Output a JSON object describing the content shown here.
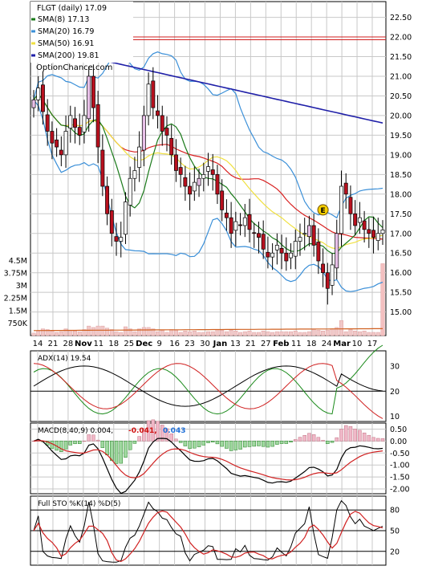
{
  "chart_data": [
    {
      "type": "candlestick",
      "panel": "price",
      "ticker": "FLGT",
      "period": "daily",
      "last_close": 17.09,
      "legend": {
        "title": "FLGT (daily) 17.09",
        "entries": [
          {
            "name": "SMA(8) 17.13",
            "color": "#1a7a1a"
          },
          {
            "name": "SMA(20) 16.79",
            "color": "#3a8fd8"
          },
          {
            "name": "SMA(50) 16.91",
            "color": "#f0e040"
          },
          {
            "name": "SMA(200) 19.81",
            "color": "#1f1fa8"
          }
        ],
        "placement": "top-left"
      },
      "watermark": "OptionChance.com",
      "ylim": [
        14.4,
        22.9
      ],
      "y_ticks": [
        "22.50",
        "22.00",
        "21.50",
        "21.00",
        "20.50",
        "20.00",
        "19.50",
        "19.00",
        "18.50",
        "18.00",
        "17.50",
        "17.00",
        "16.50",
        "16.00",
        "15.50",
        "15.00"
      ],
      "x_tick_labels": [
        "14",
        "21",
        "28",
        "Nov",
        "11",
        "18",
        "25",
        "Dec",
        "9",
        "16",
        "23",
        "30",
        "Jan",
        "13",
        "21",
        "27",
        "Feb",
        "11",
        "18",
        "24",
        "Mar",
        "10",
        "17"
      ],
      "horizontal_lines": [
        21.93,
        22.0
      ],
      "event_marker": {
        "label": "E",
        "value": 17.6
      },
      "grid": true,
      "close_series": [
        20.4,
        20.7,
        20.1,
        19.6,
        19.3,
        19.2,
        19.0,
        19.6,
        20.0,
        19.7,
        19.5,
        20.0,
        21.0,
        20.2,
        19.2,
        18.2,
        17.5,
        17.0,
        16.8,
        16.9,
        17.8,
        18.4,
        18.6,
        19.2,
        20.0,
        20.8,
        20.2,
        20.0,
        19.6,
        19.5,
        19.0,
        18.6,
        18.5,
        18.2,
        18.0,
        18.3,
        18.4,
        18.5,
        18.7,
        18.5,
        18.0,
        17.6,
        17.4,
        17.0,
        17.3,
        17.2,
        17.4,
        17.1,
        17.0,
        16.9,
        16.6,
        16.4,
        16.5,
        16.7,
        16.5,
        16.3,
        16.5,
        16.8,
        16.9,
        17.0,
        17.2,
        16.7,
        16.3,
        16.0,
        15.6,
        16.2,
        17.0,
        18.2,
        18.0,
        17.5,
        17.2,
        17.4,
        17.1,
        17.0,
        16.9,
        17.0,
        17.09
      ]
    },
    {
      "type": "bar",
      "panel": "volume",
      "ylim": [
        0,
        4800000
      ],
      "y_ticks": [
        "4.5M",
        "3.75M",
        "3M",
        "2.25M",
        "1.5M",
        "750K"
      ]
    },
    {
      "type": "line",
      "panel": "ADX",
      "label": "ADX(14) 19.54",
      "ylim": [
        8,
        36
      ],
      "y_ticks": [
        "30",
        "20",
        "10"
      ],
      "reference_line": 20
    },
    {
      "type": "line",
      "panel": "MACD",
      "label": "MACD(8,40,9) 0.004,",
      "values_labels": [
        {
          "text": "-0.041,",
          "color": "#d01010"
        },
        {
          "text": "0.043",
          "color": "#1f6fd8"
        }
      ],
      "ylim": [
        -2.2,
        0.75
      ],
      "y_ticks": [
        "0.50",
        "0.00",
        "-0.50",
        "-1.00",
        "-1.50",
        "-2.00"
      ]
    },
    {
      "type": "line",
      "panel": "Stochastic",
      "label": "Full STO %K(14) %D(5)",
      "ylim": [
        0,
        100
      ],
      "y_ticks": [
        "80",
        "50",
        "20"
      ],
      "reference_lines": [
        80,
        50,
        20
      ]
    }
  ]
}
